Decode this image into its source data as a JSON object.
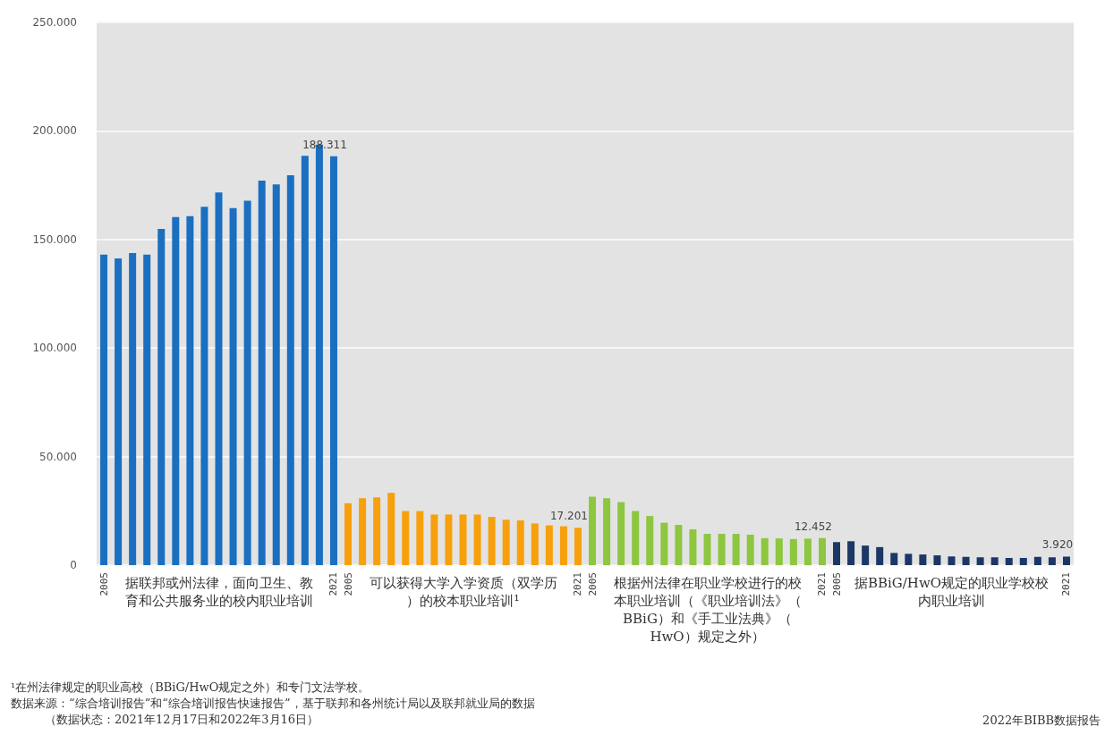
{
  "chart_data": {
    "type": "bar",
    "categories": [
      "2005",
      null,
      null,
      null,
      null,
      null,
      null,
      null,
      null,
      null,
      null,
      null,
      null,
      null,
      null,
      null,
      "2021",
      "2005",
      null,
      null,
      null,
      null,
      null,
      null,
      null,
      null,
      null,
      null,
      null,
      null,
      null,
      null,
      null,
      "2021",
      "2005",
      null,
      null,
      null,
      null,
      null,
      null,
      null,
      null,
      null,
      null,
      null,
      null,
      null,
      null,
      null,
      "2021",
      "2005",
      null,
      null,
      null,
      null,
      null,
      null,
      null,
      null,
      null,
      null,
      null,
      null,
      null,
      null,
      null,
      "2021"
    ],
    "series": [
      {
        "name": "据联邦或州法律，面向卫生、教育和公共服务业的校内职业培训",
        "color": "#1a6fc0",
        "values": [
          143000,
          141300,
          143700,
          143000,
          154900,
          160300,
          160700,
          165100,
          171600,
          164400,
          167800,
          177100,
          175300,
          179600,
          188500,
          193700,
          188311,
          null,
          null,
          null,
          null,
          null,
          null,
          null,
          null,
          null,
          null,
          null,
          null,
          null,
          null,
          null,
          null,
          null,
          null,
          null,
          null,
          null,
          null,
          null,
          null,
          null,
          null,
          null,
          null,
          null,
          null,
          null,
          null,
          null,
          null,
          null,
          null,
          null,
          null,
          null,
          null,
          null,
          null,
          null,
          null,
          null,
          null,
          null,
          null,
          null,
          null,
          null
        ],
        "value_labels": [
          null,
          null,
          null,
          null,
          null,
          null,
          null,
          null,
          null,
          null,
          null,
          null,
          null,
          null,
          null,
          null,
          "188.311",
          null,
          null,
          null,
          null,
          null,
          null,
          null,
          null,
          null,
          null,
          null,
          null,
          null,
          null,
          null,
          null,
          null,
          null,
          null,
          null,
          null,
          null,
          null,
          null,
          null,
          null,
          null,
          null,
          null,
          null,
          null,
          null,
          null,
          null,
          null,
          null,
          null,
          null,
          null,
          null,
          null,
          null,
          null,
          null,
          null,
          null,
          null,
          null,
          null,
          null,
          null
        ]
      },
      {
        "name": "可以获得大学入学资质（双学历）的校本职业培训¹",
        "color": "#f7a00c",
        "values": [
          null,
          null,
          null,
          null,
          null,
          null,
          null,
          null,
          null,
          null,
          null,
          null,
          null,
          null,
          null,
          null,
          null,
          28500,
          30800,
          31200,
          33300,
          24900,
          24900,
          23300,
          23300,
          23300,
          23300,
          22200,
          20900,
          20600,
          19200,
          18300,
          17900,
          17201,
          null,
          null,
          null,
          null,
          null,
          null,
          null,
          null,
          null,
          null,
          null,
          null,
          null,
          null,
          null,
          null,
          null,
          null,
          null,
          null,
          null,
          null,
          null,
          null,
          null,
          null,
          null,
          null,
          null,
          null,
          null,
          null,
          null,
          null
        ],
        "value_labels": [
          null,
          null,
          null,
          null,
          null,
          null,
          null,
          null,
          null,
          null,
          null,
          null,
          null,
          null,
          null,
          null,
          null,
          null,
          null,
          null,
          null,
          null,
          null,
          null,
          null,
          null,
          null,
          null,
          null,
          null,
          null,
          null,
          null,
          "17.201",
          null,
          null,
          null,
          null,
          null,
          null,
          null,
          null,
          null,
          null,
          null,
          null,
          null,
          null,
          null,
          null,
          null,
          null,
          null,
          null,
          null,
          null,
          null,
          null,
          null,
          null,
          null,
          null,
          null,
          null,
          null,
          null,
          null,
          null
        ]
      },
      {
        "name": "根据州法律在职业学校进行的校本职业培训（《职业培训法》（BBiG）和《手工业法典》（HwO）规定之外）",
        "color": "#8dc63f",
        "values": [
          null,
          null,
          null,
          null,
          null,
          null,
          null,
          null,
          null,
          null,
          null,
          null,
          null,
          null,
          null,
          null,
          null,
          null,
          null,
          null,
          null,
          null,
          null,
          null,
          null,
          null,
          null,
          null,
          null,
          null,
          null,
          null,
          null,
          null,
          31500,
          30800,
          29000,
          24900,
          22600,
          19500,
          18500,
          16500,
          14400,
          14400,
          14400,
          14000,
          12400,
          12300,
          12000,
          12200,
          12452,
          null,
          null,
          null,
          null,
          null,
          null,
          null,
          null,
          null,
          null,
          null,
          null,
          null,
          null,
          null,
          null,
          null
        ],
        "value_labels": [
          null,
          null,
          null,
          null,
          null,
          null,
          null,
          null,
          null,
          null,
          null,
          null,
          null,
          null,
          null,
          null,
          null,
          null,
          null,
          null,
          null,
          null,
          null,
          null,
          null,
          null,
          null,
          null,
          null,
          null,
          null,
          null,
          null,
          null,
          null,
          null,
          null,
          null,
          null,
          null,
          null,
          null,
          null,
          null,
          null,
          null,
          null,
          null,
          null,
          null,
          "12.452",
          null,
          null,
          null,
          null,
          null,
          null,
          null,
          null,
          null,
          null,
          null,
          null,
          null,
          null,
          null,
          null,
          null
        ]
      },
      {
        "name": "据BBiG/HwO规定的职业学校校内职业培训",
        "color": "#1b3766",
        "values": [
          null,
          null,
          null,
          null,
          null,
          null,
          null,
          null,
          null,
          null,
          null,
          null,
          null,
          null,
          null,
          null,
          null,
          null,
          null,
          null,
          null,
          null,
          null,
          null,
          null,
          null,
          null,
          null,
          null,
          null,
          null,
          null,
          null,
          null,
          null,
          null,
          null,
          null,
          null,
          null,
          null,
          null,
          null,
          null,
          null,
          null,
          null,
          null,
          null,
          null,
          null,
          10600,
          11000,
          9000,
          8300,
          5600,
          5200,
          4900,
          4500,
          4000,
          3800,
          3600,
          3600,
          3300,
          3300,
          3800,
          3600,
          3920
        ],
        "value_labels": [
          null,
          null,
          null,
          null,
          null,
          null,
          null,
          null,
          null,
          null,
          null,
          null,
          null,
          null,
          null,
          null,
          null,
          null,
          null,
          null,
          null,
          null,
          null,
          null,
          null,
          null,
          null,
          null,
          null,
          null,
          null,
          null,
          null,
          null,
          null,
          null,
          null,
          null,
          null,
          null,
          null,
          null,
          null,
          null,
          null,
          null,
          null,
          null,
          null,
          null,
          null,
          null,
          null,
          null,
          null,
          null,
          null,
          null,
          null,
          null,
          null,
          null,
          null,
          null,
          null,
          null,
          null,
          "3.920"
        ]
      }
    ],
    "ylim": [
      0,
      250000
    ],
    "yticks": [
      {
        "value": 0,
        "label": "0"
      },
      {
        "value": 50000,
        "label": "50.000"
      },
      {
        "value": 100000,
        "label": "100.000"
      },
      {
        "value": 150000,
        "label": "150.000"
      },
      {
        "value": 200000,
        "label": "200.000"
      },
      {
        "value": 250000,
        "label": "250.000"
      }
    ],
    "grid": "y",
    "legend": false,
    "annotations": [
      "¹在州法律规定的职业高校（BBiG/HwO规定之外）和专门文法学校。",
      "数据来源：“综合培训报告”和“综合培训报告快速报告”，基于联邦和各州统计局以及联邦就业局的数据",
      "（数据状态：2021年12月17日和2022年3月16日）",
      "2022年BIBB数据报告"
    ]
  }
}
